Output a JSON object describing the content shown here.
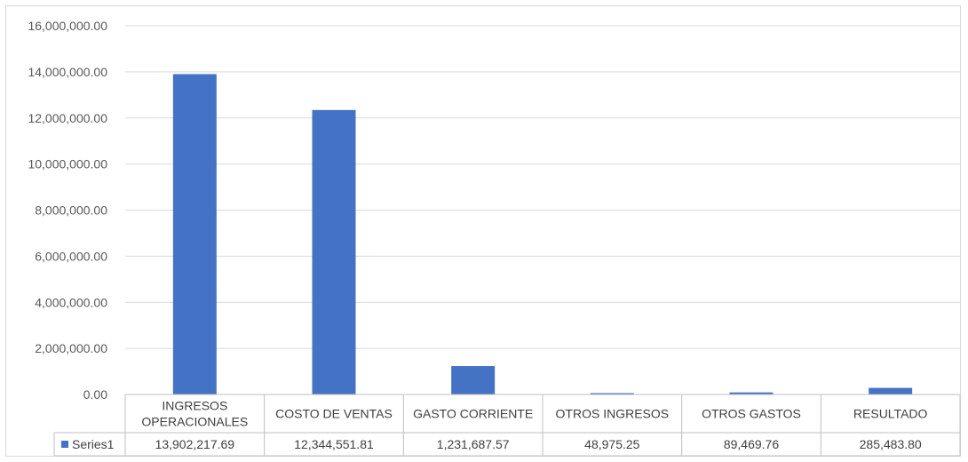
{
  "chart_data": {
    "type": "bar",
    "categories": [
      [
        "INGRESOS",
        "OPERACIONALES"
      ],
      [
        "COSTO DE VENTAS"
      ],
      [
        "GASTO CORRIENTE"
      ],
      [
        "OTROS INGRESOS"
      ],
      [
        "OTROS GASTOS"
      ],
      [
        "RESULTADO"
      ]
    ],
    "series": [
      {
        "name": "Series1",
        "values": [
          13902217.69,
          12344551.81,
          1231687.57,
          48975.25,
          89469.76,
          285483.8
        ],
        "value_labels": [
          "13,902,217.69",
          "12,344,551.81",
          "1,231,687.57",
          "48,975.25",
          "89,469.76",
          "285,483.80"
        ]
      }
    ],
    "title": "",
    "xlabel": "",
    "ylabel": "",
    "ylim": [
      0,
      16000000
    ],
    "yticks": [
      "0.00",
      "2,000,000.00",
      "4,000,000.00",
      "6,000,000.00",
      "8,000,000.00",
      "10,000,000.00",
      "12,000,000.00",
      "14,000,000.00",
      "16,000,000.00"
    ],
    "grid": true,
    "legend": "data-table",
    "colors": {
      "bar": "#4472c4",
      "grid": "#d9d9d9",
      "border": "#bfbfbf"
    }
  }
}
